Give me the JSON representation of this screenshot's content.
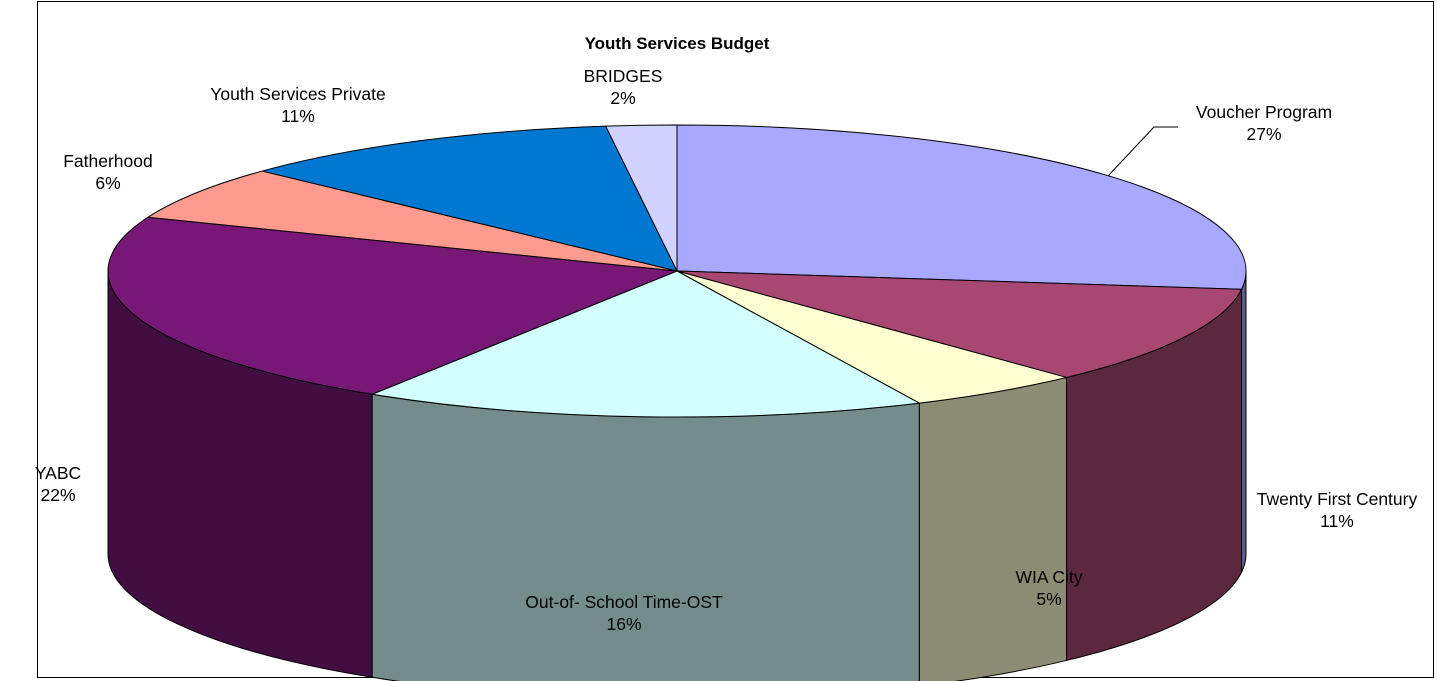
{
  "chart_data": {
    "type": "pie",
    "title": "Youth Services Budget",
    "slices": [
      {
        "label": "Voucher Program",
        "percent_label": "27%",
        "value": 27,
        "color": "#A8A8FF"
      },
      {
        "label": "Twenty First Century",
        "percent_label": "11%",
        "value": 11,
        "color": "#A84872"
      },
      {
        "label": "WIA City",
        "percent_label": "5%",
        "value": 5,
        "color": "#FFFFD2"
      },
      {
        "label": "Out-of- School Time-OST",
        "percent_label": "16%",
        "value": 16,
        "color": "#D2FFFF"
      },
      {
        "label": "YABC",
        "percent_label": "22%",
        "value": 22,
        "color": "#781876"
      },
      {
        "label": "Fatherhood",
        "percent_label": "6%",
        "value": 6,
        "color": "#FF9A8E"
      },
      {
        "label": "Youth Services Private",
        "percent_label": "11%",
        "value": 11,
        "color": "#0078D2"
      },
      {
        "label": "BRIDGES",
        "percent_label": "2%",
        "value": 2,
        "color": "#D2D2FF"
      }
    ],
    "legend": "none",
    "style": "3d-pie"
  }
}
